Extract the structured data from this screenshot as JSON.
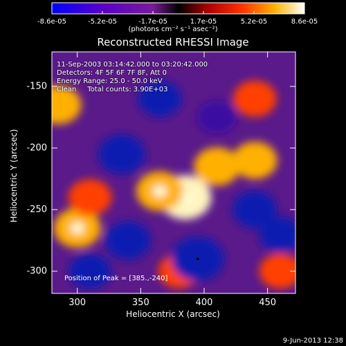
{
  "colorbar": {
    "ticks": [
      "-8.6e-05",
      "-5.2e-05",
      "-1.7e-05",
      "1.7e-05",
      "5.2e-05",
      "8.6e-05"
    ],
    "units": "(photons cm⁻² s⁻¹ asec⁻²)"
  },
  "chart_data": {
    "type": "heatmap",
    "title": "Reconstructed RHESSI Image",
    "xlabel": "Heliocentric X (arcsec)",
    "ylabel": "Heliocentric Y (arcsec)",
    "xlim": [
      280,
      472
    ],
    "ylim": [
      -318,
      -122
    ],
    "x_ticks": [
      300,
      350,
      400,
      450
    ],
    "y_ticks": [
      -150,
      -200,
      -250,
      -300
    ],
    "x_tick_labels": [
      "300",
      "350",
      "400",
      "450"
    ],
    "y_tick_labels": [
      "-150",
      "-200",
      "-250",
      "-300"
    ],
    "colorbar_range": [
      -8.6e-05,
      8.6e-05
    ],
    "blobs": [
      {
        "x": 385,
        "y": -240,
        "value": 8.6e-05
      },
      {
        "x": 365,
        "y": -235,
        "value": 6.5e-05
      },
      {
        "x": 410,
        "y": -215,
        "value": 6e-05
      },
      {
        "x": 440,
        "y": -210,
        "value": 5.5e-05
      },
      {
        "x": 300,
        "y": -265,
        "value": 6.5e-05
      },
      {
        "x": 310,
        "y": -240,
        "value": 5e-05
      },
      {
        "x": 285,
        "y": -165,
        "value": 6e-05
      },
      {
        "x": 440,
        "y": -160,
        "value": 5e-05
      },
      {
        "x": 380,
        "y": -300,
        "value": 4e-05
      },
      {
        "x": 460,
        "y": -300,
        "value": 4.5e-05
      },
      {
        "x": 335,
        "y": -205,
        "value": -6.5e-05
      },
      {
        "x": 395,
        "y": -290,
        "value": -8.6e-05
      },
      {
        "x": 365,
        "y": -160,
        "value": -5e-05
      },
      {
        "x": 440,
        "y": -250,
        "value": -5.5e-05
      },
      {
        "x": 340,
        "y": -275,
        "value": -6e-05
      },
      {
        "x": 310,
        "y": -300,
        "value": -4.5e-05
      },
      {
        "x": 460,
        "y": -270,
        "value": -4.5e-05
      },
      {
        "x": 410,
        "y": -175,
        "value": -3.5e-05
      }
    ]
  },
  "info": {
    "line1": "11-Sep-2003 03:14:42.000 to 03:20:42.000",
    "line2": "Detectors: 4F 5F 6F 7F 8F, Att 0",
    "line3": "Energy Range: 25.0 - 50.0 keV",
    "line4": "Clean     Total counts: 3.90E+03",
    "peak": "Position of Peak = [385.,-240]"
  },
  "footer": {
    "date": "9-Jun-2013 12:38"
  }
}
